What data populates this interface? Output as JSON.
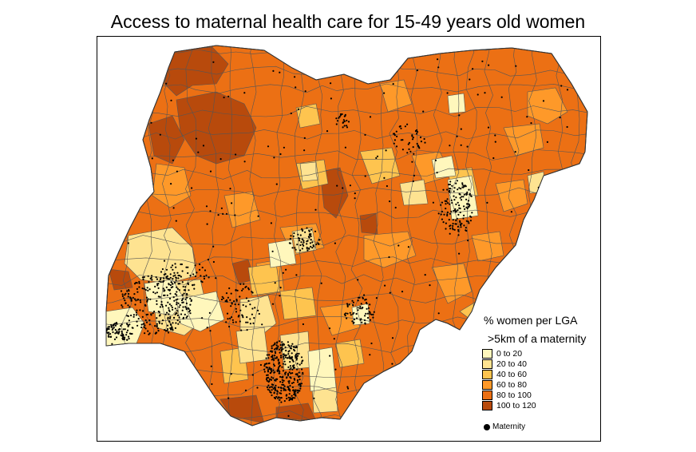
{
  "map": {
    "title": "Access to maternal health care for 15-49 years old women",
    "legend": {
      "title_line1": "% women per LGA",
      "title_line2": ">5km of a maternity",
      "classes": [
        {
          "label": "0 to 20",
          "color": "#fff7bc"
        },
        {
          "label": "20 to 40",
          "color": "#fee391"
        },
        {
          "label": "40 to 60",
          "color": "#fec44f"
        },
        {
          "label": "60 to 80",
          "color": "#fe9929"
        },
        {
          "label": "80 to 100",
          "color": "#ec7014"
        },
        {
          "label": "100 to 120",
          "color": "#b84a0c"
        }
      ],
      "point_label": "Maternity"
    },
    "boundary_color": "#555555",
    "point_color": "#000000"
  }
}
